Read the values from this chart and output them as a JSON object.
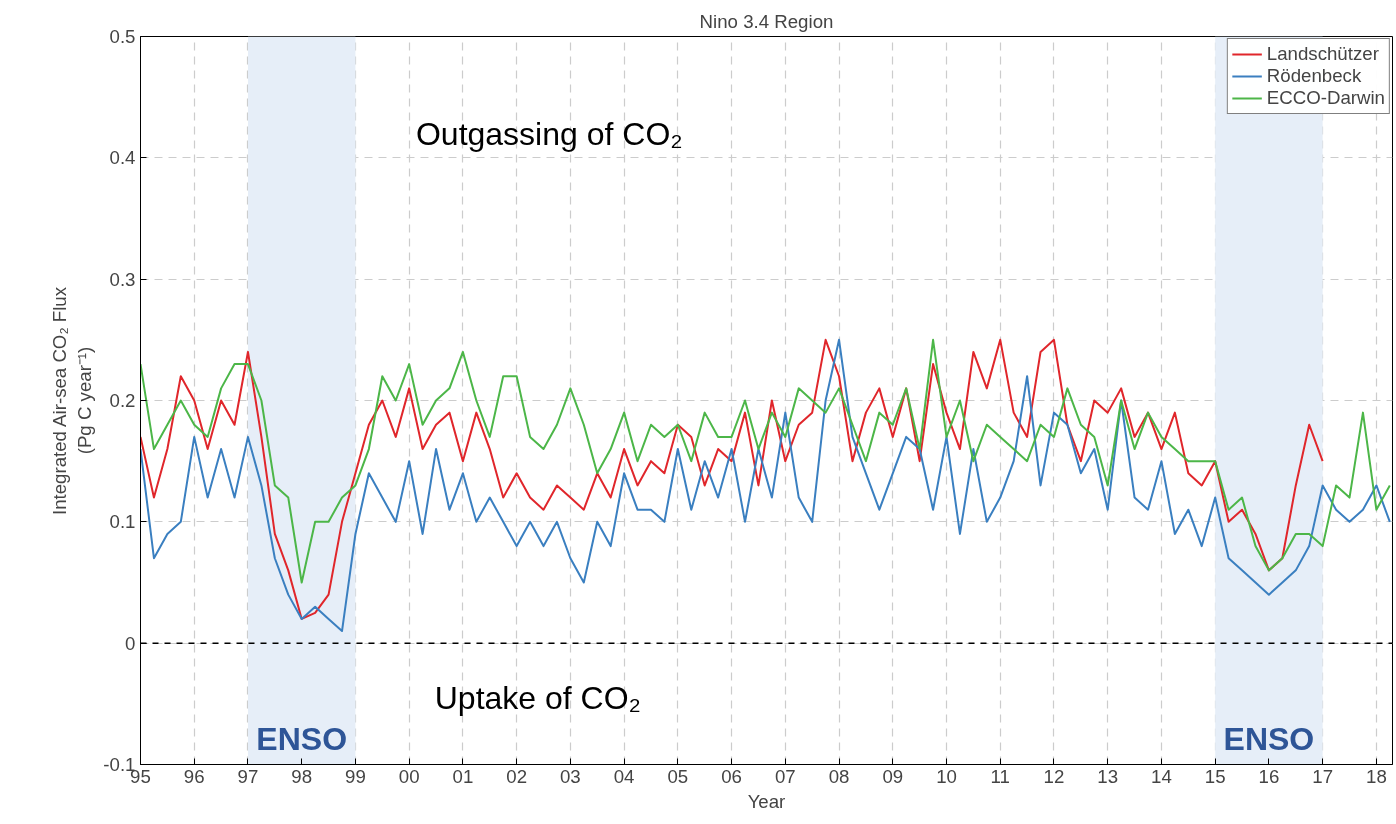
{
  "chart_data": {
    "type": "line",
    "title": "Nino 3.4 Region",
    "xlabel": "Year",
    "ylabel": "Integrated Air-sea CO₂ Flux\n(Pg C year⁻¹)",
    "xlim": [
      1995,
      2018.3
    ],
    "ylim": [
      -0.1,
      0.5
    ],
    "xticks": [
      {
        "value": 1995,
        "label": "95"
      },
      {
        "value": 1996,
        "label": "96"
      },
      {
        "value": 1997,
        "label": "97"
      },
      {
        "value": 1998,
        "label": "98"
      },
      {
        "value": 1999,
        "label": "99"
      },
      {
        "value": 2000,
        "label": "00"
      },
      {
        "value": 2001,
        "label": "01"
      },
      {
        "value": 2002,
        "label": "02"
      },
      {
        "value": 2003,
        "label": "03"
      },
      {
        "value": 2004,
        "label": "04"
      },
      {
        "value": 2005,
        "label": "05"
      },
      {
        "value": 2006,
        "label": "06"
      },
      {
        "value": 2007,
        "label": "07"
      },
      {
        "value": 2008,
        "label": "08"
      },
      {
        "value": 2009,
        "label": "09"
      },
      {
        "value": 2010,
        "label": "10"
      },
      {
        "value": 2011,
        "label": "11"
      },
      {
        "value": 2012,
        "label": "12"
      },
      {
        "value": 2013,
        "label": "13"
      },
      {
        "value": 2014,
        "label": "14"
      },
      {
        "value": 2015,
        "label": "15"
      },
      {
        "value": 2016,
        "label": "16"
      },
      {
        "value": 2017,
        "label": "17"
      },
      {
        "value": 2018,
        "label": "18"
      }
    ],
    "yticks": [
      -0.1,
      0,
      0.1,
      0.2,
      0.3,
      0.4,
      0.5
    ],
    "grid": true,
    "legend": "top right",
    "line_style": "solid",
    "series": [
      {
        "name": "Landschützer",
        "color": "#e0262b",
        "x": [
          1995,
          1995.25,
          1995.5,
          1995.75,
          1996,
          1996.25,
          1996.5,
          1996.75,
          1997,
          1997.25,
          1997.5,
          1997.75,
          1998,
          1998.25,
          1998.5,
          1998.75,
          1999,
          1999.25,
          1999.5,
          1999.75,
          2000,
          2000.25,
          2000.5,
          2000.75,
          2001,
          2001.25,
          2001.5,
          2001.75,
          2002,
          2002.25,
          2002.5,
          2002.75,
          2003,
          2003.25,
          2003.5,
          2003.75,
          2004,
          2004.25,
          2004.5,
          2004.75,
          2005,
          2005.25,
          2005.5,
          2005.75,
          2006,
          2006.25,
          2006.5,
          2006.75,
          2007,
          2007.25,
          2007.5,
          2007.75,
          2008,
          2008.25,
          2008.5,
          2008.75,
          2009,
          2009.25,
          2009.5,
          2009.75,
          2010,
          2010.25,
          2010.5,
          2010.75,
          2011,
          2011.25,
          2011.5,
          2011.75,
          2012,
          2012.25,
          2012.5,
          2012.75,
          2013,
          2013.25,
          2013.5,
          2013.75,
          2014,
          2014.25,
          2014.5,
          2014.75,
          2015,
          2015.25,
          2015.5,
          2015.75,
          2016,
          2016.25,
          2016.5,
          2016.75,
          2017
        ],
        "values": [
          0.17,
          0.12,
          0.16,
          0.22,
          0.2,
          0.16,
          0.2,
          0.18,
          0.24,
          0.17,
          0.09,
          0.06,
          0.02,
          0.025,
          0.04,
          0.1,
          0.14,
          0.18,
          0.2,
          0.17,
          0.21,
          0.16,
          0.18,
          0.19,
          0.15,
          0.19,
          0.16,
          0.12,
          0.14,
          0.12,
          0.11,
          0.13,
          0.12,
          0.11,
          0.14,
          0.12,
          0.16,
          0.13,
          0.15,
          0.14,
          0.18,
          0.17,
          0.13,
          0.16,
          0.15,
          0.19,
          0.13,
          0.2,
          0.15,
          0.18,
          0.19,
          0.25,
          0.22,
          0.15,
          0.19,
          0.21,
          0.17,
          0.21,
          0.15,
          0.23,
          0.19,
          0.16,
          0.24,
          0.21,
          0.25,
          0.19,
          0.17,
          0.24,
          0.25,
          0.18,
          0.15,
          0.2,
          0.19,
          0.21,
          0.17,
          0.19,
          0.16,
          0.19,
          0.14,
          0.13,
          0.15,
          0.1,
          0.11,
          0.09,
          0.06,
          0.07,
          0.13,
          0.18,
          0.15
        ]
      },
      {
        "name": "Rödenbeck",
        "color": "#3a7fc0",
        "x": [
          1995,
          1995.25,
          1995.5,
          1995.75,
          1996,
          1996.25,
          1996.5,
          1996.75,
          1997,
          1997.25,
          1997.5,
          1997.75,
          1998,
          1998.25,
          1998.5,
          1998.75,
          1999,
          1999.25,
          1999.5,
          1999.75,
          2000,
          2000.25,
          2000.5,
          2000.75,
          2001,
          2001.25,
          2001.5,
          2001.75,
          2002,
          2002.25,
          2002.5,
          2002.75,
          2003,
          2003.25,
          2003.5,
          2003.75,
          2004,
          2004.25,
          2004.5,
          2004.75,
          2005,
          2005.25,
          2005.5,
          2005.75,
          2006,
          2006.25,
          2006.5,
          2006.75,
          2007,
          2007.25,
          2007.5,
          2007.75,
          2008,
          2008.25,
          2008.5,
          2008.75,
          2009,
          2009.25,
          2009.5,
          2009.75,
          2010,
          2010.25,
          2010.5,
          2010.75,
          2011,
          2011.25,
          2011.5,
          2011.75,
          2012,
          2012.25,
          2012.5,
          2012.75,
          2013,
          2013.25,
          2013.5,
          2013.75,
          2014,
          2014.25,
          2014.5,
          2014.75,
          2015,
          2015.25,
          2015.5,
          2015.75,
          2016,
          2016.25,
          2016.5,
          2016.75,
          2017,
          2017.25,
          2017.5,
          2017.75,
          2018,
          2018.25
        ],
        "values": [
          0.16,
          0.07,
          0.09,
          0.1,
          0.17,
          0.12,
          0.16,
          0.12,
          0.17,
          0.13,
          0.07,
          0.04,
          0.02,
          0.03,
          0.02,
          0.01,
          0.09,
          0.14,
          0.12,
          0.1,
          0.15,
          0.09,
          0.16,
          0.11,
          0.14,
          0.1,
          0.12,
          0.1,
          0.08,
          0.1,
          0.08,
          0.1,
          0.07,
          0.05,
          0.1,
          0.08,
          0.14,
          0.11,
          0.11,
          0.1,
          0.16,
          0.11,
          0.15,
          0.12,
          0.16,
          0.1,
          0.16,
          0.12,
          0.19,
          0.12,
          0.1,
          0.2,
          0.25,
          0.17,
          0.14,
          0.11,
          0.14,
          0.17,
          0.16,
          0.11,
          0.17,
          0.09,
          0.16,
          0.1,
          0.12,
          0.15,
          0.22,
          0.13,
          0.19,
          0.18,
          0.14,
          0.16,
          0.11,
          0.2,
          0.12,
          0.11,
          0.15,
          0.09,
          0.11,
          0.08,
          0.12,
          0.07,
          0.06,
          0.05,
          0.04,
          0.05,
          0.06,
          0.08,
          0.13,
          0.11,
          0.1,
          0.11,
          0.13,
          0.1
        ]
      },
      {
        "name": "ECCO-Darwin",
        "color": "#4cb648",
        "x": [
          1995,
          1995.25,
          1995.5,
          1995.75,
          1996,
          1996.25,
          1996.5,
          1996.75,
          1997,
          1997.25,
          1997.5,
          1997.75,
          1998,
          1998.25,
          1998.5,
          1998.75,
          1999,
          1999.25,
          1999.5,
          1999.75,
          2000,
          2000.25,
          2000.5,
          2000.75,
          2001,
          2001.25,
          2001.5,
          2001.75,
          2002,
          2002.25,
          2002.5,
          2002.75,
          2003,
          2003.25,
          2003.5,
          2003.75,
          2004,
          2004.25,
          2004.5,
          2004.75,
          2005,
          2005.25,
          2005.5,
          2005.75,
          2006,
          2006.25,
          2006.5,
          2006.75,
          2007,
          2007.25,
          2007.5,
          2007.75,
          2008,
          2008.25,
          2008.5,
          2008.75,
          2009,
          2009.25,
          2009.5,
          2009.75,
          2010,
          2010.25,
          2010.5,
          2010.75,
          2011,
          2011.25,
          2011.5,
          2011.75,
          2012,
          2012.25,
          2012.5,
          2012.75,
          2013,
          2013.25,
          2013.5,
          2013.75,
          2014,
          2014.25,
          2014.5,
          2014.75,
          2015,
          2015.25,
          2015.5,
          2015.75,
          2016,
          2016.25,
          2016.5,
          2016.75,
          2017,
          2017.25,
          2017.5,
          2017.75,
          2018,
          2018.25
        ],
        "values": [
          0.23,
          0.16,
          0.18,
          0.2,
          0.18,
          0.17,
          0.21,
          0.23,
          0.23,
          0.2,
          0.13,
          0.12,
          0.05,
          0.1,
          0.1,
          0.12,
          0.13,
          0.16,
          0.22,
          0.2,
          0.23,
          0.18,
          0.2,
          0.21,
          0.24,
          0.2,
          0.17,
          0.22,
          0.22,
          0.17,
          0.16,
          0.18,
          0.21,
          0.18,
          0.14,
          0.16,
          0.19,
          0.15,
          0.18,
          0.17,
          0.18,
          0.15,
          0.19,
          0.17,
          0.17,
          0.2,
          0.16,
          0.19,
          0.17,
          0.21,
          0.2,
          0.19,
          0.21,
          0.18,
          0.15,
          0.19,
          0.18,
          0.21,
          0.16,
          0.25,
          0.17,
          0.2,
          0.15,
          0.18,
          0.17,
          0.16,
          0.15,
          0.18,
          0.17,
          0.21,
          0.18,
          0.17,
          0.13,
          0.2,
          0.16,
          0.19,
          0.17,
          0.16,
          0.15,
          0.15,
          0.15,
          0.11,
          0.12,
          0.08,
          0.06,
          0.07,
          0.09,
          0.09,
          0.08,
          0.13,
          0.12,
          0.19,
          0.11,
          0.13
        ]
      }
    ],
    "ref_lines": [
      {
        "axis": "y",
        "value": 0,
        "color": "#000000",
        "line_style": "dashed"
      }
    ],
    "bands": [
      {
        "axis": "x",
        "from": 1997,
        "to": 1999,
        "label": "ENSO",
        "color": "#e6eef8"
      },
      {
        "axis": "x",
        "from": 2015,
        "to": 2017,
        "label": "ENSO",
        "color": "#e6eef8"
      }
    ],
    "annotations": [
      "Outgassing of CO₂",
      "Uptake of CO₂"
    ]
  }
}
